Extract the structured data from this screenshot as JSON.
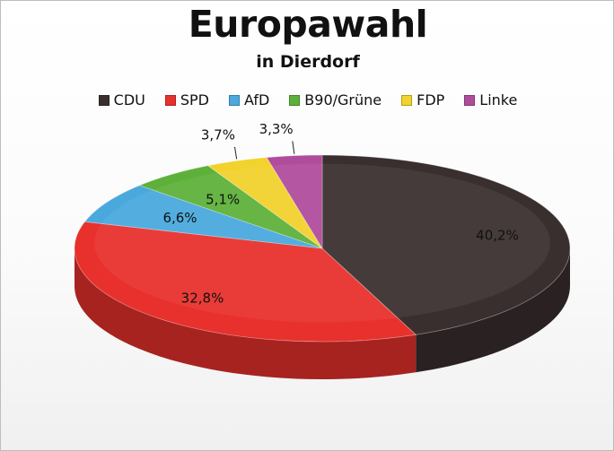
{
  "chart_data": {
    "type": "pie",
    "title": "Europawahl",
    "subtitle": "in Dierdorf",
    "legend_position": "top",
    "slices": [
      {
        "label": "CDU",
        "value": 40.2,
        "display": "40,2%",
        "color": "#3a2f2f"
      },
      {
        "label": "SPD",
        "value": 32.8,
        "display": "32,8%",
        "color": "#e8302c"
      },
      {
        "label": "AfD",
        "value": 6.6,
        "display": "6,6%",
        "color": "#49a9dd"
      },
      {
        "label": "B90/Grüne",
        "value": 5.1,
        "display": "5,1%",
        "color": "#5db13a"
      },
      {
        "label": "FDP",
        "value": 3.7,
        "display": "3,7%",
        "color": "#f2d22c"
      },
      {
        "label": "Linke",
        "value": 3.3,
        "display": "3,3%",
        "color": "#b04c9c"
      }
    ]
  }
}
